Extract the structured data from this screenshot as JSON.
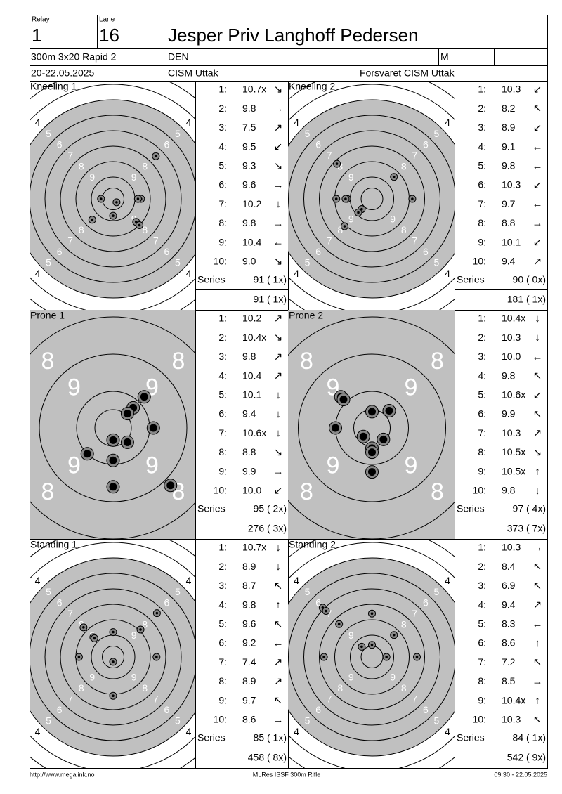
{
  "header": {
    "relay_label": "Relay",
    "relay": "1",
    "lane_label": "Lane",
    "lane": "16",
    "name": "Jesper Priv Langhoff Pedersen",
    "event": "300m 3x20 Rapid 2",
    "nation": "DEN",
    "gender": "M",
    "date": "20-22.05.2025",
    "competition": "CISM Uttak",
    "organizer": "Forsvaret CISM Uttak"
  },
  "panels": [
    {
      "title": "Kneeling 1",
      "rings": [
        4,
        5,
        6,
        7,
        8,
        9
      ],
      "series_label": "Series",
      "series": "91 ( 1x)",
      "total": "91 ( 1x)",
      "shots": [
        {
          "n": "1:",
          "score": "10.7x",
          "dir": "↘"
        },
        {
          "n": "2:",
          "score": "9.8",
          "dir": "→"
        },
        {
          "n": "3:",
          "score": "7.5",
          "dir": "↗"
        },
        {
          "n": "4:",
          "score": "9.5",
          "dir": "↙"
        },
        {
          "n": "5:",
          "score": "9.3",
          "dir": "↘"
        },
        {
          "n": "6:",
          "score": "9.6",
          "dir": "→"
        },
        {
          "n": "7:",
          "score": "10.2",
          "dir": "↓"
        },
        {
          "n": "8:",
          "score": "9.8",
          "dir": "→"
        },
        {
          "n": "9:",
          "score": "10.4",
          "dir": "←"
        },
        {
          "n": "10:",
          "score": "9.0",
          "dir": "↘"
        }
      ]
    },
    {
      "title": "Kneeling 2",
      "rings": [
        4,
        5,
        6,
        7,
        8,
        9
      ],
      "series_label": "Series",
      "series": "90 ( 0x)",
      "total": "181 ( 1x)",
      "shots": [
        {
          "n": "1:",
          "score": "10.3",
          "dir": "↙"
        },
        {
          "n": "2:",
          "score": "8.2",
          "dir": "↖"
        },
        {
          "n": "3:",
          "score": "8.9",
          "dir": "↙"
        },
        {
          "n": "4:",
          "score": "9.1",
          "dir": "←"
        },
        {
          "n": "5:",
          "score": "9.8",
          "dir": "←"
        },
        {
          "n": "6:",
          "score": "10.3",
          "dir": "↙"
        },
        {
          "n": "7:",
          "score": "9.7",
          "dir": "←"
        },
        {
          "n": "8:",
          "score": "8.8",
          "dir": "→"
        },
        {
          "n": "9:",
          "score": "10.1",
          "dir": "↙"
        },
        {
          "n": "10:",
          "score": "9.4",
          "dir": "↗"
        }
      ]
    },
    {
      "title": "Prone 1",
      "rings": [
        8,
        9
      ],
      "series_label": "Series",
      "series": "95 ( 2x)",
      "total": "276 ( 3x)",
      "shots": [
        {
          "n": "1:",
          "score": "10.2",
          "dir": "↗"
        },
        {
          "n": "2:",
          "score": "10.4x",
          "dir": "↘"
        },
        {
          "n": "3:",
          "score": "9.8",
          "dir": "↗"
        },
        {
          "n": "4:",
          "score": "10.4",
          "dir": "↗"
        },
        {
          "n": "5:",
          "score": "10.1",
          "dir": "↓"
        },
        {
          "n": "6:",
          "score": "9.4",
          "dir": "↓"
        },
        {
          "n": "7:",
          "score": "10.6x",
          "dir": "↓"
        },
        {
          "n": "8:",
          "score": "8.8",
          "dir": "↘"
        },
        {
          "n": "9:",
          "score": "9.9",
          "dir": "→"
        },
        {
          "n": "10:",
          "score": "10.0",
          "dir": "↙"
        }
      ]
    },
    {
      "title": "Prone 2",
      "rings": [
        8,
        9
      ],
      "series_label": "Series",
      "series": "97 ( 4x)",
      "total": "373 ( 7x)",
      "shots": [
        {
          "n": "1:",
          "score": "10.4x",
          "dir": "↓"
        },
        {
          "n": "2:",
          "score": "10.3",
          "dir": "↓"
        },
        {
          "n": "3:",
          "score": "10.0",
          "dir": "←"
        },
        {
          "n": "4:",
          "score": "9.8",
          "dir": "↖"
        },
        {
          "n": "5:",
          "score": "10.6x",
          "dir": "↙"
        },
        {
          "n": "6:",
          "score": "9.9",
          "dir": "↖"
        },
        {
          "n": "7:",
          "score": "10.3",
          "dir": "↗"
        },
        {
          "n": "8:",
          "score": "10.5x",
          "dir": "↘"
        },
        {
          "n": "9:",
          "score": "10.5x",
          "dir": "↑"
        },
        {
          "n": "10:",
          "score": "9.8",
          "dir": "↓"
        }
      ]
    },
    {
      "title": "Standing 1",
      "rings": [
        4,
        5,
        6,
        7,
        8,
        9
      ],
      "series_label": "Series",
      "series": "85 ( 1x)",
      "total": "458 ( 8x)",
      "shots": [
        {
          "n": "1:",
          "score": "10.7x",
          "dir": "↓"
        },
        {
          "n": "2:",
          "score": "8.9",
          "dir": "↓"
        },
        {
          "n": "3:",
          "score": "8.7",
          "dir": "↖"
        },
        {
          "n": "4:",
          "score": "9.8",
          "dir": "↑"
        },
        {
          "n": "5:",
          "score": "9.6",
          "dir": "↖"
        },
        {
          "n": "6:",
          "score": "9.2",
          "dir": "←"
        },
        {
          "n": "7:",
          "score": "7.4",
          "dir": "↗"
        },
        {
          "n": "8:",
          "score": "8.9",
          "dir": "↗"
        },
        {
          "n": "9:",
          "score": "9.7",
          "dir": "↖"
        },
        {
          "n": "10:",
          "score": "8.6",
          "dir": "→"
        }
      ]
    },
    {
      "title": "Standing 2",
      "rings": [
        4,
        5,
        6,
        7,
        8,
        9
      ],
      "series_label": "Series",
      "series": "84 ( 1x)",
      "total": "542 ( 9x)",
      "shots": [
        {
          "n": "1:",
          "score": "10.3",
          "dir": "→"
        },
        {
          "n": "2:",
          "score": "8.4",
          "dir": "↖"
        },
        {
          "n": "3:",
          "score": "6.9",
          "dir": "↖"
        },
        {
          "n": "4:",
          "score": "9.4",
          "dir": "↗"
        },
        {
          "n": "5:",
          "score": "8.3",
          "dir": "←"
        },
        {
          "n": "6:",
          "score": "8.6",
          "dir": "↑"
        },
        {
          "n": "7:",
          "score": "7.2",
          "dir": "↖"
        },
        {
          "n": "8:",
          "score": "8.5",
          "dir": "→"
        },
        {
          "n": "9:",
          "score": "10.4x",
          "dir": "↑"
        },
        {
          "n": "10:",
          "score": "10.3",
          "dir": "↖"
        }
      ]
    }
  ],
  "footer": {
    "url": "http://www.megalink.no",
    "software": "MLRes ISSF 300m Rifle",
    "timestamp": "09:30 - 22.05.2025"
  }
}
